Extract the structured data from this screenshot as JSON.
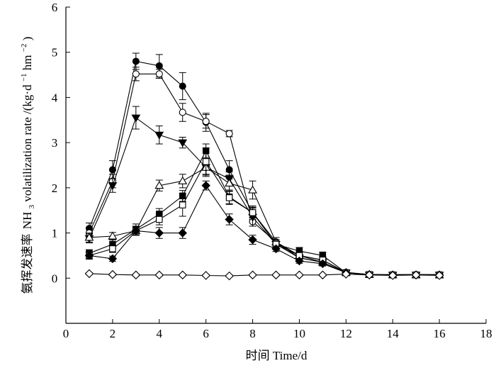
{
  "chart_data": {
    "type": "line",
    "title": "",
    "xlabel": "时间 Time/d",
    "ylabel_cn": "氨挥发速率",
    "ylabel_en": "/(kg·d",
    "ylabel_sup1": "−1",
    "ylabel_mid": " hm",
    "ylabel_sup2": "−2",
    "ylabel_end": ")",
    "ylabel_nh": "NH",
    "ylabel_sub": "3",
    "ylabel_rate": " volatilization rate",
    "xlim": [
      0,
      18
    ],
    "ylim": [
      -1,
      6
    ],
    "xticks": [
      0,
      2,
      4,
      6,
      8,
      10,
      12,
      14,
      16,
      18
    ],
    "yticks": [
      0,
      1,
      2,
      3,
      4,
      5,
      6
    ],
    "series": [
      {
        "name": "filled-circle",
        "marker": "circle",
        "filled": true,
        "x": [
          1,
          2,
          3,
          4,
          5,
          6,
          7,
          8,
          9,
          10,
          11,
          12,
          13,
          14,
          15,
          16
        ],
        "values": [
          1.1,
          2.4,
          4.8,
          4.7,
          4.25,
          3.45,
          2.4,
          1.45,
          0.8,
          0.5,
          0.4,
          0.13,
          0.08,
          0.08,
          0.08,
          0.08
        ],
        "errors": [
          0.12,
          0.2,
          0.18,
          0.25,
          0.3,
          0.2,
          0.2,
          0.15,
          0.1,
          0.08,
          0.08,
          0.03,
          0.02,
          0.02,
          0.02,
          0.02
        ]
      },
      {
        "name": "open-circle",
        "marker": "circle",
        "filled": false,
        "x": [
          1,
          2,
          3,
          4,
          5,
          6,
          7,
          8,
          9,
          10,
          11,
          12,
          13,
          14,
          15,
          16
        ],
        "values": [
          1.0,
          2.15,
          4.52,
          4.52,
          3.67,
          3.47,
          3.2,
          1.25,
          0.8,
          0.45,
          0.35,
          0.12,
          0.08,
          0.07,
          0.08,
          0.07
        ],
        "errors": [
          0.12,
          0.15,
          0.15,
          0.1,
          0.2,
          0.15,
          0.07,
          0.1,
          0.1,
          0.06,
          0.06,
          0.03,
          0.02,
          0.02,
          0.02,
          0.02
        ]
      },
      {
        "name": "filled-triangle-down",
        "marker": "triangle-down",
        "filled": true,
        "x": [
          1,
          2,
          3,
          4,
          5,
          6,
          7,
          8,
          9,
          10,
          11,
          12,
          13,
          14,
          15,
          16
        ],
        "values": [
          0.88,
          2.05,
          3.55,
          3.17,
          3.0,
          2.45,
          2.2,
          1.35,
          0.75,
          0.45,
          0.35,
          0.12,
          0.07,
          0.07,
          0.07,
          0.07
        ],
        "errors": [
          0.1,
          0.15,
          0.25,
          0.2,
          0.12,
          0.15,
          0.15,
          0.2,
          0.1,
          0.06,
          0.06,
          0.03,
          0.02,
          0.02,
          0.02,
          0.02
        ]
      },
      {
        "name": "open-triangle-up",
        "marker": "triangle-up",
        "filled": false,
        "x": [
          1,
          2,
          3,
          4,
          5,
          6,
          7,
          8,
          9,
          10,
          11,
          12,
          13,
          14,
          15,
          16
        ],
        "values": [
          0.9,
          0.93,
          1.05,
          2.05,
          2.15,
          2.45,
          2.1,
          1.95,
          0.8,
          0.5,
          0.35,
          0.12,
          0.08,
          0.07,
          0.07,
          0.07
        ],
        "errors": [
          0.1,
          0.08,
          0.1,
          0.12,
          0.15,
          0.2,
          0.18,
          0.2,
          0.1,
          0.06,
          0.06,
          0.03,
          0.02,
          0.02,
          0.02,
          0.02
        ]
      },
      {
        "name": "filled-square",
        "marker": "square",
        "filled": true,
        "x": [
          1,
          2,
          3,
          4,
          5,
          6,
          7,
          8,
          9,
          10,
          11,
          12,
          13,
          14,
          15,
          16
        ],
        "values": [
          0.55,
          0.75,
          1.08,
          1.42,
          1.82,
          2.82,
          1.8,
          1.45,
          0.75,
          0.6,
          0.5,
          0.12,
          0.08,
          0.07,
          0.07,
          0.07
        ],
        "errors": [
          0.08,
          0.1,
          0.12,
          0.12,
          0.12,
          0.15,
          0.15,
          0.12,
          0.1,
          0.08,
          0.08,
          0.03,
          0.02,
          0.02,
          0.02,
          0.02
        ]
      },
      {
        "name": "open-square",
        "marker": "square",
        "filled": false,
        "x": [
          1,
          2,
          3,
          4,
          5,
          6,
          7,
          8,
          9,
          10,
          11,
          12,
          13,
          14,
          15,
          16
        ],
        "values": [
          0.5,
          0.65,
          1.05,
          1.3,
          1.62,
          2.58,
          1.78,
          1.45,
          0.75,
          0.5,
          0.4,
          0.12,
          0.08,
          0.07,
          0.07,
          0.07
        ],
        "errors": [
          0.08,
          0.08,
          0.1,
          0.12,
          0.25,
          0.3,
          0.15,
          0.12,
          0.1,
          0.06,
          0.06,
          0.03,
          0.02,
          0.02,
          0.02,
          0.02
        ]
      },
      {
        "name": "filled-diamond",
        "marker": "diamond",
        "filled": true,
        "x": [
          1,
          2,
          3,
          4,
          5,
          6,
          7,
          8,
          9,
          10,
          11,
          12,
          13,
          14,
          15,
          16
        ],
        "values": [
          0.5,
          0.43,
          1.05,
          1.0,
          1.0,
          2.05,
          1.3,
          0.85,
          0.65,
          0.38,
          0.32,
          0.12,
          0.08,
          0.07,
          0.07,
          0.07
        ],
        "errors": [
          0.08,
          0.06,
          0.1,
          0.12,
          0.12,
          0.1,
          0.12,
          0.1,
          0.06,
          0.05,
          0.05,
          0.03,
          0.02,
          0.02,
          0.02,
          0.02
        ]
      },
      {
        "name": "open-diamond",
        "marker": "diamond",
        "filled": false,
        "x": [
          1,
          2,
          3,
          4,
          5,
          6,
          7,
          8,
          9,
          10,
          11,
          12,
          13,
          14,
          15,
          16
        ],
        "values": [
          0.1,
          0.08,
          0.07,
          0.07,
          0.07,
          0.06,
          0.05,
          0.07,
          0.07,
          0.07,
          0.07,
          0.09,
          0.07,
          0.06,
          0.07,
          0.06
        ],
        "errors": [
          0.02,
          0.02,
          0.02,
          0.02,
          0.02,
          0.02,
          0.02,
          0.02,
          0.02,
          0.02,
          0.02,
          0.02,
          0.02,
          0.02,
          0.02,
          0.02
        ]
      }
    ]
  }
}
